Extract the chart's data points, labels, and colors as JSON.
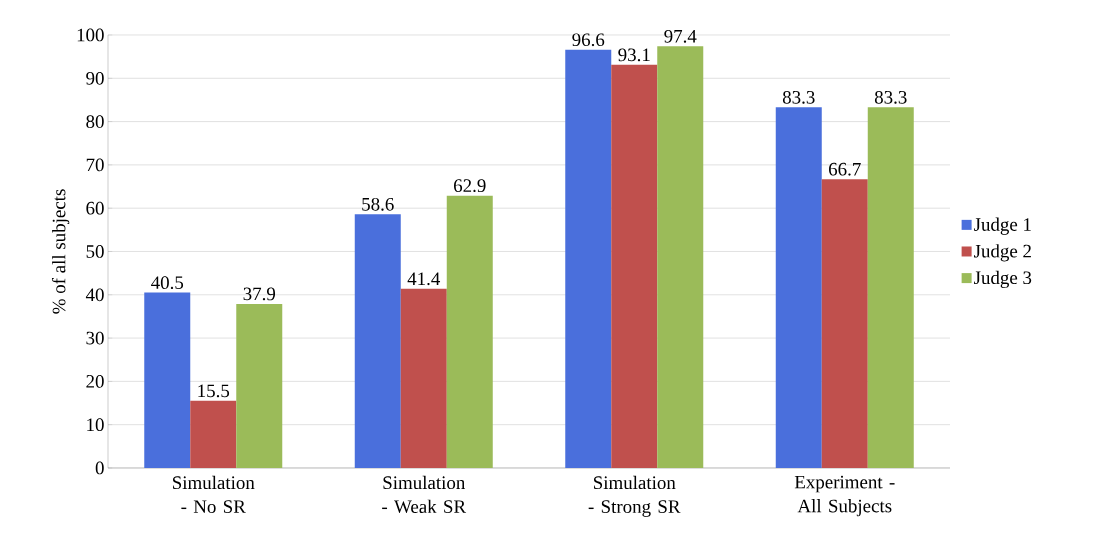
{
  "chart_data": {
    "type": "bar",
    "ylabel": "% of all subjects",
    "categories": [
      "Simulation - No SR",
      "Simulation - Weak SR",
      "Simulation - Strong SR",
      "Experiment - All Subjects"
    ],
    "series": [
      {
        "name": "Judge 1",
        "color": "#4a6fdc",
        "values": [
          40.5,
          58.6,
          96.6,
          83.3
        ]
      },
      {
        "name": "Judge 2",
        "color": "#c0504d",
        "values": [
          15.5,
          41.4,
          93.1,
          66.7
        ]
      },
      {
        "name": "Judge 3",
        "color": "#9bbb59",
        "values": [
          37.9,
          62.9,
          97.4,
          83.3
        ]
      }
    ],
    "ylim": [
      0,
      100
    ],
    "yticks": [
      0,
      10,
      20,
      30,
      40,
      50,
      60,
      70,
      80,
      90,
      100
    ],
    "grid": "y",
    "legend": "right",
    "data_labels": true
  }
}
